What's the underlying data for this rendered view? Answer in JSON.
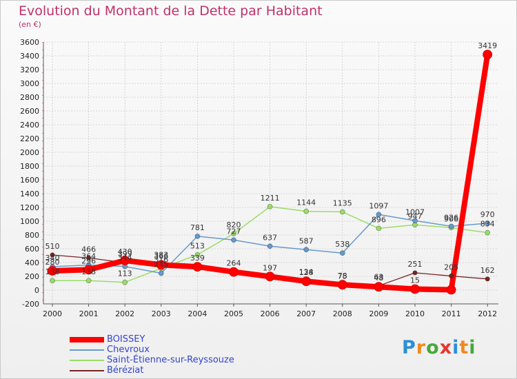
{
  "title": "Evolution du Montant de la Dette par Habitant",
  "unit_label": "(en €)",
  "logo": {
    "text": "Proxiti",
    "letter_colors": [
      "#2b8fd6",
      "#f08a1c",
      "#49a83a",
      "#e5362e",
      "#2b8fd6",
      "#f08a1c",
      "#49a83a"
    ]
  },
  "chart_data": {
    "type": "line",
    "title": "Evolution du Montant de la Dette par Habitant",
    "ylabel": "(en €)",
    "xlabel": "",
    "ylim": [
      -200,
      3600
    ],
    "ytick_step": 200,
    "grid": true,
    "legend_position": "bottom-left",
    "categories": [
      "2000",
      "2001",
      "2002",
      "2003",
      "2004",
      "2005",
      "2006",
      "2007",
      "2008",
      "2009",
      "2010",
      "2011",
      "2012"
    ],
    "series": [
      {
        "name": "BOISSEY",
        "color": "#ff0000",
        "values": [
          280,
          296,
          430,
          366,
          339,
          264,
          197,
          128,
          78,
          48,
          15,
          5,
          3419
        ],
        "value_labels": [
          "280",
          "296",
          "430",
          "366",
          "339",
          "264",
          "197",
          "128",
          "78",
          "48",
          "15",
          "",
          "3419"
        ]
      },
      {
        "name": "Chevroux",
        "color": "#6699cc",
        "values": [
          340,
          364,
          344,
          245,
          781,
          727,
          637,
          587,
          538,
          1097,
          1007,
          926,
          970
        ],
        "value_labels": [
          "340",
          "364",
          "344",
          "245",
          "781",
          "727",
          "637",
          "587",
          "538",
          "1097",
          "1007",
          "926",
          "970"
        ]
      },
      {
        "name": "Saint-Étienne-sur-Reyssouze",
        "color": "#99dd66",
        "values": [
          138,
          138,
          113,
          316,
          513,
          820,
          1211,
          1144,
          1135,
          896,
          947,
          906,
          834
        ],
        "value_labels": [
          "138",
          "138",
          "113",
          "316",
          "513",
          "820",
          "1211",
          "1144",
          "1135",
          "896",
          "947",
          "906",
          "834"
        ]
      },
      {
        "name": "Béréziat",
        "color": "#772222",
        "values": [
          510,
          466,
          399,
          383,
          339,
          264,
          197,
          134,
          75,
          63,
          251,
          205,
          162
        ],
        "value_labels": [
          "510",
          "466",
          "399",
          "383",
          "",
          "",
          "",
          "134",
          "75",
          "63",
          "251",
          "205",
          "162"
        ]
      }
    ]
  }
}
